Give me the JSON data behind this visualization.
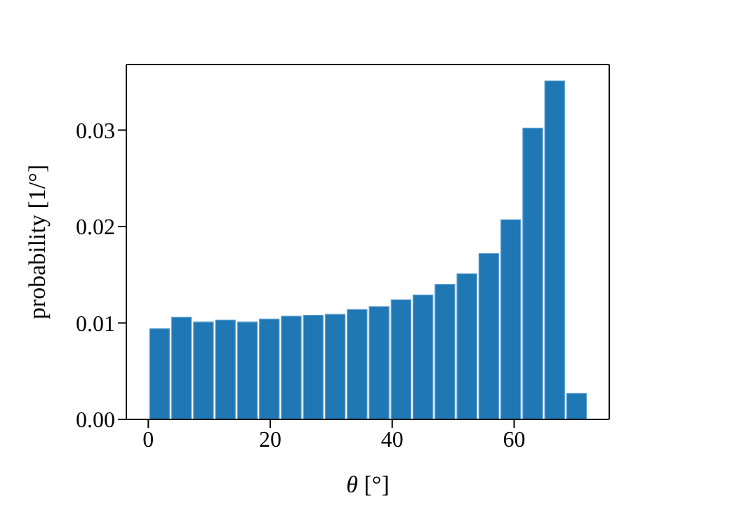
{
  "chart_data": {
    "type": "histogram",
    "xlabel": "θ [°]",
    "ylabel": "probability [1/°]",
    "bins": [
      0,
      3.6,
      7.2,
      10.8,
      14.4,
      18,
      21.6,
      25.2,
      28.8,
      32.4,
      36,
      39.6,
      43.2,
      46.8,
      50.4,
      54,
      57.6,
      61.2,
      64.8,
      68.4,
      72
    ],
    "values": [
      0.0094,
      0.0106,
      0.0101,
      0.0103,
      0.0101,
      0.0104,
      0.0107,
      0.0108,
      0.0109,
      0.0114,
      0.0117,
      0.0124,
      0.0129,
      0.014,
      0.0151,
      0.0172,
      0.0207,
      0.0302,
      0.0351,
      0.0027
    ],
    "color": "#1f77b4",
    "xlim": [
      -3.6,
      75.6
    ],
    "xticks": [
      0,
      20,
      40,
      60
    ],
    "ylim": [
      0,
      0.0368
    ],
    "yticks": [
      {
        "value": 0,
        "label": "0.00"
      },
      {
        "value": 0.01,
        "label": "0.01"
      },
      {
        "value": 0.02,
        "label": "0.02"
      },
      {
        "value": 0.03,
        "label": "0.03"
      }
    ],
    "grid": false
  }
}
